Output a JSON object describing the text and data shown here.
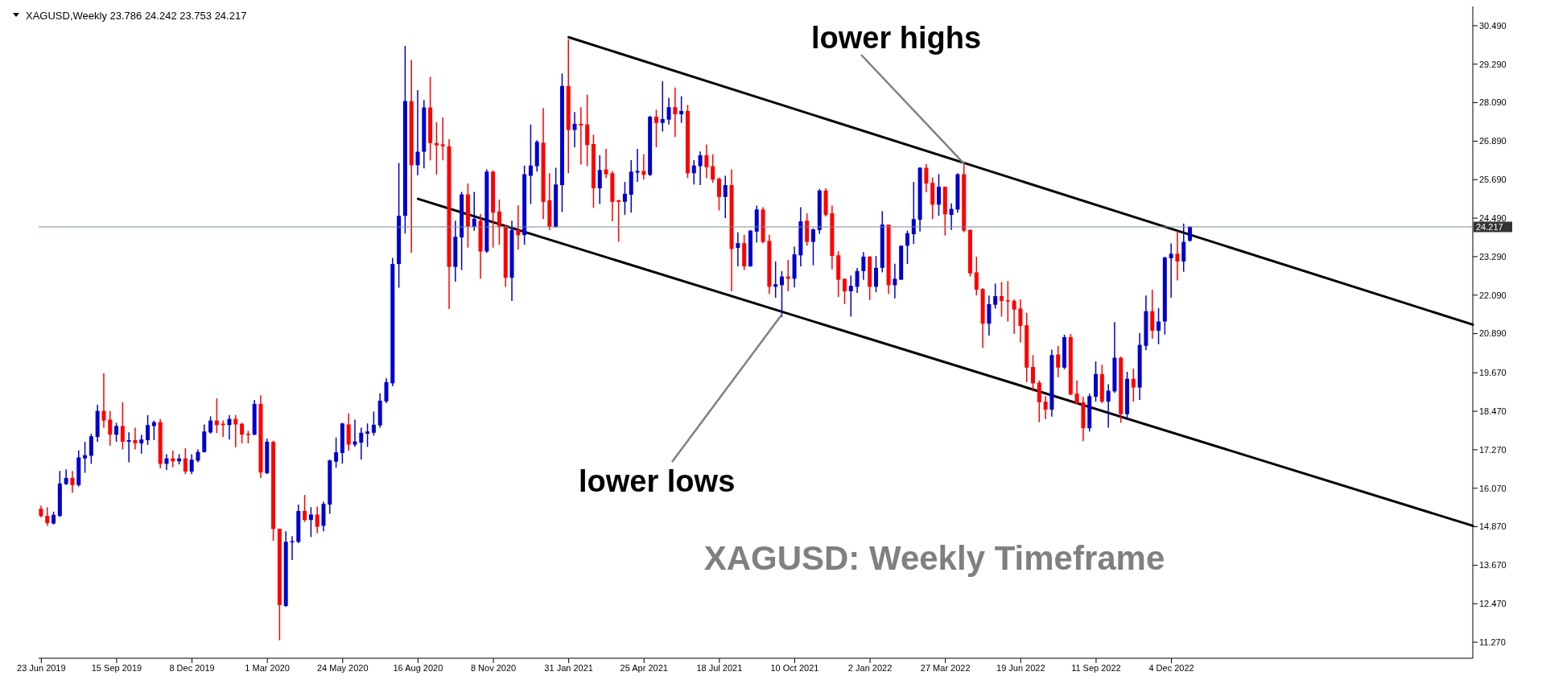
{
  "chart_data": {
    "type": "candlestick",
    "x": [
      "2019-06-23",
      "2019-06-30",
      "2019-07-07",
      "2019-07-14",
      "2019-07-21",
      "2019-07-28",
      "2019-08-04",
      "2019-08-11",
      "2019-08-18",
      "2019-08-25",
      "2019-09-01",
      "2019-09-08",
      "2019-09-15",
      "2019-09-22",
      "2019-09-29",
      "2019-10-06",
      "2019-10-13",
      "2019-10-20",
      "2019-10-27",
      "2019-11-03",
      "2019-11-10",
      "2019-11-17",
      "2019-11-24",
      "2019-12-01",
      "2019-12-08",
      "2019-12-15",
      "2019-12-22",
      "2019-12-29",
      "2020-01-05",
      "2020-01-12",
      "2020-01-19",
      "2020-01-26",
      "2020-02-02",
      "2020-02-09",
      "2020-02-16",
      "2020-02-23",
      "2020-03-01",
      "2020-03-08",
      "2020-03-15",
      "2020-03-22",
      "2020-03-29",
      "2020-04-05",
      "2020-04-12",
      "2020-04-19",
      "2020-04-26",
      "2020-05-03",
      "2020-05-10",
      "2020-05-17",
      "2020-05-24",
      "2020-05-31",
      "2020-06-07",
      "2020-06-14",
      "2020-06-21",
      "2020-06-28",
      "2020-07-05",
      "2020-07-12",
      "2020-07-19",
      "2020-07-26",
      "2020-08-02",
      "2020-08-09",
      "2020-08-16",
      "2020-08-23",
      "2020-08-30",
      "2020-09-06",
      "2020-09-13",
      "2020-09-20",
      "2020-09-27",
      "2020-10-04",
      "2020-10-11",
      "2020-10-18",
      "2020-10-25",
      "2020-11-01",
      "2020-11-08",
      "2020-11-15",
      "2020-11-22",
      "2020-11-29",
      "2020-12-06",
      "2020-12-13",
      "2020-12-20",
      "2020-12-27",
      "2021-01-03",
      "2021-01-10",
      "2021-01-17",
      "2021-01-24",
      "2021-01-31",
      "2021-02-07",
      "2021-02-14",
      "2021-02-21",
      "2021-02-28",
      "2021-03-07",
      "2021-03-14",
      "2021-03-21",
      "2021-03-28",
      "2021-04-04",
      "2021-04-11",
      "2021-04-18",
      "2021-04-25",
      "2021-05-02",
      "2021-05-09",
      "2021-05-16",
      "2021-05-23",
      "2021-05-30",
      "2021-06-06",
      "2021-06-13",
      "2021-06-20",
      "2021-06-27",
      "2021-07-04",
      "2021-07-11",
      "2021-07-18",
      "2021-07-25",
      "2021-08-01",
      "2021-08-08",
      "2021-08-15",
      "2021-08-22",
      "2021-08-29",
      "2021-09-05",
      "2021-09-12",
      "2021-09-19",
      "2021-09-26",
      "2021-10-03",
      "2021-10-10",
      "2021-10-17",
      "2021-10-24",
      "2021-10-31",
      "2021-11-07",
      "2021-11-14",
      "2021-11-21",
      "2021-11-28",
      "2021-12-05",
      "2021-12-12",
      "2021-12-19",
      "2021-12-26",
      "2022-01-02",
      "2022-01-09",
      "2022-01-16",
      "2022-01-23",
      "2022-01-30",
      "2022-02-06",
      "2022-02-13",
      "2022-02-20",
      "2022-02-27",
      "2022-03-06",
      "2022-03-13",
      "2022-03-20",
      "2022-03-27",
      "2022-04-03",
      "2022-04-10",
      "2022-04-17",
      "2022-04-24",
      "2022-05-01",
      "2022-05-08",
      "2022-05-15",
      "2022-05-22",
      "2022-05-29",
      "2022-06-05",
      "2022-06-12",
      "2022-06-19",
      "2022-06-26",
      "2022-07-03",
      "2022-07-10",
      "2022-07-17",
      "2022-07-24",
      "2022-07-31",
      "2022-08-07",
      "2022-08-14",
      "2022-08-21",
      "2022-08-28",
      "2022-09-04",
      "2022-09-11",
      "2022-09-18",
      "2022-09-25",
      "2022-10-02",
      "2022-10-09",
      "2022-10-16",
      "2022-10-23",
      "2022-10-30",
      "2022-11-06",
      "2022-11-13",
      "2022-11-20",
      "2022-11-27",
      "2022-12-04",
      "2022-12-11",
      "2022-12-18",
      "2022-12-25"
    ],
    "ohlc": [
      [
        15.43,
        15.53,
        15.16,
        15.2
      ],
      [
        15.21,
        15.48,
        14.9,
        14.98
      ],
      [
        14.97,
        15.34,
        14.94,
        15.24
      ],
      [
        15.21,
        16.61,
        15.17,
        16.22
      ],
      [
        16.2,
        16.66,
        16.17,
        16.39
      ],
      [
        16.39,
        16.61,
        15.93,
        16.17
      ],
      [
        16.17,
        17.25,
        16.12,
        17.03
      ],
      [
        17.0,
        17.52,
        16.55,
        17.1
      ],
      [
        17.08,
        17.77,
        16.83,
        17.69
      ],
      [
        17.67,
        18.67,
        17.52,
        18.48
      ],
      [
        18.48,
        19.65,
        17.96,
        18.18
      ],
      [
        18.21,
        18.48,
        17.4,
        17.74
      ],
      [
        17.74,
        18.11,
        17.52,
        18.01
      ],
      [
        18.01,
        18.75,
        17.28,
        17.52
      ],
      [
        17.52,
        17.81,
        16.88,
        17.57
      ],
      [
        17.57,
        17.96,
        17.28,
        17.47
      ],
      [
        17.47,
        17.74,
        17.15,
        17.59
      ],
      [
        17.57,
        18.35,
        17.42,
        18.04
      ],
      [
        18.01,
        18.18,
        17.57,
        18.13
      ],
      [
        18.13,
        18.23,
        16.69,
        16.83
      ],
      [
        16.83,
        17.13,
        16.64,
        17.0
      ],
      [
        17.0,
        17.25,
        16.73,
        16.91
      ],
      [
        16.91,
        17.13,
        16.81,
        17.0
      ],
      [
        17.0,
        17.32,
        16.51,
        16.59
      ],
      [
        16.59,
        17.13,
        16.51,
        16.96
      ],
      [
        16.93,
        17.28,
        16.88,
        17.2
      ],
      [
        17.2,
        18.06,
        17.18,
        17.84
      ],
      [
        17.81,
        18.31,
        17.77,
        18.18
      ],
      [
        18.18,
        18.87,
        17.79,
        18.04
      ],
      [
        18.08,
        18.18,
        17.67,
        18.04
      ],
      [
        18.04,
        18.35,
        17.59,
        18.23
      ],
      [
        18.23,
        18.35,
        17.35,
        18.06
      ],
      [
        18.08,
        18.11,
        17.47,
        17.74
      ],
      [
        17.77,
        17.86,
        17.47,
        17.74
      ],
      [
        17.74,
        18.82,
        17.72,
        18.7
      ],
      [
        18.7,
        18.97,
        16.39,
        16.56
      ],
      [
        16.54,
        17.62,
        16.51,
        17.52
      ],
      [
        17.52,
        17.55,
        14.43,
        14.8
      ],
      [
        14.81,
        14.81,
        11.33,
        12.43
      ],
      [
        12.4,
        14.73,
        12.37,
        14.4
      ],
      [
        14.4,
        14.58,
        13.83,
        14.42
      ],
      [
        14.4,
        15.56,
        14.36,
        15.36
      ],
      [
        15.36,
        15.86,
        15.02,
        15.08
      ],
      [
        15.08,
        15.48,
        14.55,
        15.25
      ],
      [
        15.25,
        15.5,
        14.67,
        14.87
      ],
      [
        14.9,
        15.65,
        14.73,
        15.58
      ],
      [
        15.56,
        16.96,
        15.27,
        16.94
      ],
      [
        16.9,
        17.65,
        16.71,
        17.19
      ],
      [
        17.17,
        18.11,
        16.84,
        18.09
      ],
      [
        18.06,
        18.4,
        17.24,
        17.43
      ],
      [
        17.43,
        18.21,
        17.36,
        17.53
      ],
      [
        17.49,
        17.96,
        16.96,
        17.8
      ],
      [
        17.77,
        18.09,
        17.36,
        17.84
      ],
      [
        17.8,
        18.46,
        17.71,
        18.05
      ],
      [
        18.03,
        19.03,
        17.96,
        18.8
      ],
      [
        18.78,
        19.5,
        18.72,
        19.38
      ],
      [
        19.34,
        23.25,
        19.25,
        23.06
      ],
      [
        23.06,
        26.21,
        22.32,
        24.56
      ],
      [
        24.56,
        29.86,
        24.01,
        28.14
      ],
      [
        28.14,
        29.42,
        23.41,
        26.14
      ],
      [
        26.14,
        28.48,
        25.83,
        26.56
      ],
      [
        26.56,
        28.17,
        26.04,
        27.94
      ],
      [
        27.94,
        28.89,
        26.29,
        26.83
      ],
      [
        26.83,
        27.48,
        25.85,
        26.76
      ],
      [
        26.79,
        27.63,
        26.29,
        26.73
      ],
      [
        26.73,
        26.95,
        21.66,
        22.97
      ],
      [
        22.97,
        24.41,
        22.51,
        23.91
      ],
      [
        23.89,
        25.31,
        22.87,
        25.23
      ],
      [
        25.23,
        25.57,
        23.57,
        24.22
      ],
      [
        24.22,
        25.31,
        24.1,
        24.47
      ],
      [
        24.41,
        24.62,
        22.6,
        23.45
      ],
      [
        23.45,
        26.01,
        23.41,
        25.94
      ],
      [
        25.94,
        25.98,
        23.57,
        24.66
      ],
      [
        24.7,
        25.07,
        23.66,
        24.22
      ],
      [
        24.22,
        24.29,
        22.35,
        22.63
      ],
      [
        22.63,
        24.41,
        21.91,
        24.12
      ],
      [
        24.12,
        24.89,
        23.51,
        23.96
      ],
      [
        23.96,
        26.13,
        23.66,
        25.86
      ],
      [
        25.81,
        27.41,
        24.93,
        26.13
      ],
      [
        26.11,
        26.92,
        25.94,
        26.87
      ],
      [
        26.84,
        27.92,
        24.46,
        25.0
      ],
      [
        25.05,
        25.89,
        24.12,
        24.22
      ],
      [
        24.22,
        26.06,
        24.19,
        25.54
      ],
      [
        25.52,
        29.0,
        24.68,
        28.61
      ],
      [
        28.61,
        30.07,
        25.89,
        27.24
      ],
      [
        27.24,
        27.8,
        26.7,
        27.43
      ],
      [
        27.43,
        27.95,
        26.16,
        27.38
      ],
      [
        27.41,
        28.34,
        26.11,
        26.77
      ],
      [
        26.8,
        27.09,
        24.81,
        25.42
      ],
      [
        25.42,
        26.45,
        24.93,
        25.99
      ],
      [
        26.01,
        26.65,
        25.74,
        25.86
      ],
      [
        25.89,
        25.96,
        24.39,
        25.0
      ],
      [
        25.05,
        25.05,
        23.75,
        25.0
      ],
      [
        25.0,
        25.62,
        24.59,
        25.25
      ],
      [
        25.22,
        26.3,
        24.66,
        25.94
      ],
      [
        25.91,
        26.65,
        25.62,
        25.96
      ],
      [
        25.96,
        26.48,
        25.69,
        25.84
      ],
      [
        25.84,
        27.68,
        25.8,
        27.65
      ],
      [
        27.65,
        27.87,
        26.7,
        27.46
      ],
      [
        27.46,
        28.76,
        27.19,
        27.58
      ],
      [
        27.56,
        28.24,
        27.41,
        27.95
      ],
      [
        27.95,
        28.56,
        27.02,
        27.73
      ],
      [
        27.73,
        28.29,
        27.46,
        27.83
      ],
      [
        27.83,
        28.02,
        25.74,
        25.89
      ],
      [
        25.89,
        26.3,
        25.54,
        26.13
      ],
      [
        26.11,
        26.57,
        25.52,
        26.45
      ],
      [
        26.45,
        26.79,
        25.74,
        26.08
      ],
      [
        26.11,
        26.48,
        25.59,
        25.69
      ],
      [
        25.72,
        25.76,
        24.73,
        25.15
      ],
      [
        25.15,
        25.81,
        24.49,
        25.52
      ],
      [
        25.52,
        26.01,
        22.21,
        23.53
      ],
      [
        23.56,
        24.05,
        22.99,
        23.71
      ],
      [
        23.71,
        23.97,
        22.87,
        22.99
      ],
      [
        22.99,
        24.12,
        22.97,
        24.1
      ],
      [
        24.07,
        24.88,
        23.73,
        24.76
      ],
      [
        24.76,
        24.83,
        23.7,
        23.75
      ],
      [
        23.78,
        23.97,
        22.13,
        22.35
      ],
      [
        22.35,
        23.14,
        22.01,
        22.43
      ],
      [
        22.4,
        22.84,
        21.4,
        22.67
      ],
      [
        22.67,
        23.19,
        22.21,
        22.6
      ],
      [
        22.6,
        23.6,
        22.33,
        23.36
      ],
      [
        23.33,
        24.83,
        22.99,
        24.39
      ],
      [
        24.41,
        24.64,
        23.63,
        23.75
      ],
      [
        23.75,
        24.17,
        23.02,
        24.14
      ],
      [
        24.12,
        25.4,
        24.0,
        25.35
      ],
      [
        25.35,
        25.42,
        24.54,
        24.59
      ],
      [
        24.64,
        24.88,
        22.89,
        23.31
      ],
      [
        23.33,
        23.46,
        22.03,
        22.57
      ],
      [
        22.6,
        22.6,
        21.81,
        22.21
      ],
      [
        22.21,
        22.7,
        21.42,
        22.38
      ],
      [
        22.35,
        22.94,
        22.16,
        22.84
      ],
      [
        22.84,
        23.43,
        22.57,
        23.29
      ],
      [
        23.29,
        23.31,
        21.94,
        22.35
      ],
      [
        22.35,
        23.31,
        22.18,
        22.94
      ],
      [
        22.94,
        24.71,
        22.8,
        24.29
      ],
      [
        24.29,
        24.29,
        22.13,
        22.4
      ],
      [
        22.4,
        23.07,
        21.99,
        22.6
      ],
      [
        22.57,
        23.63,
        22.57,
        23.63
      ],
      [
        23.63,
        24.1,
        23.06,
        24.02
      ],
      [
        23.99,
        25.62,
        23.68,
        24.46
      ],
      [
        24.44,
        26.08,
        24.07,
        26.06
      ],
      [
        26.06,
        26.18,
        25.3,
        25.57
      ],
      [
        25.59,
        25.76,
        24.46,
        24.91
      ],
      [
        24.91,
        25.86,
        24.56,
        25.47
      ],
      [
        25.47,
        25.47,
        23.95,
        24.61
      ],
      [
        24.59,
        24.95,
        24.12,
        24.78
      ],
      [
        24.76,
        25.89,
        24.66,
        25.86
      ],
      [
        25.86,
        26.18,
        24.05,
        24.1
      ],
      [
        24.12,
        24.14,
        22.67,
        22.77
      ],
      [
        22.8,
        23.29,
        22.08,
        22.26
      ],
      [
        22.28,
        22.31,
        20.44,
        21.2
      ],
      [
        21.2,
        22.08,
        20.83,
        21.81
      ],
      [
        21.79,
        22.45,
        21.67,
        22.06
      ],
      [
        22.06,
        22.5,
        21.42,
        21.91
      ],
      [
        21.93,
        22.53,
        21.27,
        21.9
      ],
      [
        21.91,
        21.96,
        20.88,
        21.64
      ],
      [
        21.67,
        21.96,
        20.61,
        21.13
      ],
      [
        21.15,
        21.54,
        19.38,
        19.83
      ],
      [
        19.85,
        20.22,
        19.09,
        19.34
      ],
      [
        19.36,
        19.43,
        18.13,
        18.75
      ],
      [
        18.77,
        18.94,
        18.23,
        18.52
      ],
      [
        18.52,
        20.39,
        18.3,
        20.22
      ],
      [
        20.24,
        20.51,
        19.53,
        19.83
      ],
      [
        19.83,
        20.86,
        19.78,
        20.78
      ],
      [
        20.78,
        20.88,
        18.97,
        18.99
      ],
      [
        19.02,
        19.43,
        18.7,
        18.72
      ],
      [
        18.75,
        18.92,
        17.54,
        17.94
      ],
      [
        17.94,
        19.02,
        17.84,
        18.94
      ],
      [
        18.92,
        20.02,
        18.77,
        19.63
      ],
      [
        19.63,
        19.92,
        18.72,
        18.77
      ],
      [
        18.77,
        19.31,
        17.96,
        19.11
      ],
      [
        19.09,
        21.25,
        19.04,
        20.14
      ],
      [
        20.14,
        20.17,
        18.11,
        18.38
      ],
      [
        18.38,
        19.7,
        18.23,
        19.48
      ],
      [
        19.48,
        19.8,
        18.77,
        19.21
      ],
      [
        19.21,
        20.91,
        18.82,
        20.54
      ],
      [
        20.51,
        22.08,
        20.37,
        21.59
      ],
      [
        21.59,
        22.26,
        20.73,
        20.98
      ],
      [
        20.98,
        21.69,
        20.56,
        21.27
      ],
      [
        21.27,
        23.29,
        20.86,
        23.26
      ],
      [
        23.24,
        23.7,
        22.01,
        23.38
      ],
      [
        23.38,
        24.1,
        22.55,
        23.14
      ],
      [
        23.14,
        24.32,
        22.82,
        23.75
      ],
      [
        23.786,
        24.242,
        23.753,
        24.217
      ]
    ],
    "colors": [
      "#ff0000",
      "#ff0000",
      "#0000cd",
      "#0000cd",
      "#0000cd",
      "#ff0000",
      "#0000cd",
      "#0000cd",
      "#0000cd",
      "#0000cd",
      "#ff0000",
      "#ff0000",
      "#0000cd",
      "#ff0000",
      "#0000cd",
      "#ff0000",
      "#0000cd",
      "#0000cd",
      "#0000cd",
      "#ff0000",
      "#0000cd",
      "#ff0000",
      "#0000cd",
      "#ff0000",
      "#0000cd",
      "#0000cd",
      "#0000cd",
      "#0000cd",
      "#ff0000",
      "#ff0000",
      "#0000cd",
      "#ff0000",
      "#ff0000",
      "#ff0000",
      "#0000cd",
      "#ff0000",
      "#0000cd",
      "#ff0000",
      "#ff0000",
      "#0000cd",
      "#0000cd",
      "#0000cd",
      "#ff0000",
      "#0000cd",
      "#ff0000",
      "#0000cd",
      "#0000cd",
      "#0000cd",
      "#0000cd",
      "#ff0000",
      "#0000cd",
      "#0000cd",
      "#0000cd",
      "#0000cd",
      "#0000cd",
      "#0000cd",
      "#0000cd",
      "#0000cd",
      "#0000cd",
      "#ff0000",
      "#0000cd",
      "#0000cd",
      "#ff0000",
      "#ff0000",
      "#ff0000",
      "#ff0000",
      "#0000cd",
      "#0000cd",
      "#ff0000",
      "#0000cd",
      "#ff0000",
      "#0000cd",
      "#ff0000",
      "#ff0000",
      "#ff0000",
      "#0000cd",
      "#ff0000",
      "#0000cd",
      "#0000cd",
      "#0000cd",
      "#ff0000",
      "#ff0000",
      "#0000cd",
      "#0000cd",
      "#ff0000",
      "#0000cd",
      "#ff0000",
      "#ff0000",
      "#ff0000",
      "#0000cd",
      "#ff0000",
      "#ff0000",
      "#ff0000",
      "#0000cd",
      "#0000cd",
      "#0000cd",
      "#ff0000",
      "#0000cd",
      "#ff0000",
      "#0000cd",
      "#0000cd",
      "#ff0000",
      "#0000cd",
      "#ff0000",
      "#0000cd",
      "#0000cd",
      "#ff0000",
      "#ff0000",
      "#ff0000",
      "#0000cd",
      "#ff0000",
      "#0000cd",
      "#ff0000",
      "#0000cd",
      "#0000cd",
      "#ff0000",
      "#ff0000",
      "#0000cd",
      "#0000cd",
      "#ff0000",
      "#0000cd",
      "#0000cd",
      "#ff0000",
      "#0000cd",
      "#0000cd",
      "#ff0000",
      "#ff0000",
      "#ff0000",
      "#ff0000",
      "#0000cd",
      "#0000cd",
      "#0000cd",
      "#ff0000",
      "#0000cd",
      "#0000cd",
      "#ff0000",
      "#0000cd",
      "#0000cd",
      "#0000cd",
      "#0000cd",
      "#0000cd",
      "#ff0000",
      "#ff0000",
      "#0000cd",
      "#ff0000",
      "#0000cd",
      "#0000cd",
      "#ff0000",
      "#ff0000",
      "#ff0000",
      "#ff0000",
      "#0000cd",
      "#0000cd",
      "#ff0000",
      "#ff0000",
      "#ff0000",
      "#ff0000",
      "#ff0000",
      "#ff0000",
      "#ff0000",
      "#ff0000",
      "#0000cd",
      "#ff0000",
      "#0000cd",
      "#ff0000",
      "#ff0000",
      "#ff0000",
      "#0000cd",
      "#0000cd",
      "#ff0000",
      "#0000cd",
      "#0000cd",
      "#ff0000",
      "#0000cd",
      "#ff0000",
      "#0000cd",
      "#0000cd",
      "#ff0000",
      "#0000cd",
      "#0000cd",
      "#0000cd",
      "#ff0000",
      "#0000cd",
      "#0000cd"
    ],
    "series": [
      {
        "type": "line",
        "color": "#000000",
        "x": [
          "2021-01-31",
          "2023-11-05"
        ],
        "values": [
          30.13,
          21.17
        ]
      },
      {
        "type": "line",
        "color": "#000000",
        "x": [
          "2020-08-16",
          "2023-11-05"
        ],
        "values": [
          25.09,
          14.9
        ]
      }
    ],
    "xlim": [
      "2019-06-20",
      "2023-11-05"
    ],
    "xticks": [
      {
        "value": "2019-06-23",
        "label": "23 Jun 2019"
      },
      {
        "value": "2019-09-15",
        "label": "15 Sep 2019"
      },
      {
        "value": "2019-12-08",
        "label": "8 Dec 2019"
      },
      {
        "value": "2020-03-01",
        "label": "1 Mar 2020"
      },
      {
        "value": "2020-05-24",
        "label": "24 May 2020"
      },
      {
        "value": "2020-08-16",
        "label": "16 Aug 2020"
      },
      {
        "value": "2020-11-08",
        "label": "8 Nov 2020"
      },
      {
        "value": "2021-01-31",
        "label": "31 Jan 2021"
      },
      {
        "value": "2021-04-25",
        "label": "25 Apr 2021"
      },
      {
        "value": "2021-07-18",
        "label": "18 Jul 2021"
      },
      {
        "value": "2021-10-10",
        "label": "10 Oct 2021"
      },
      {
        "value": "2022-01-02",
        "label": "2 Jan 2022"
      },
      {
        "value": "2022-03-27",
        "label": "27 Mar 2022"
      },
      {
        "value": "2022-06-19",
        "label": "19 Jun 2022"
      },
      {
        "value": "2022-09-11",
        "label": "11 Sep 2022"
      },
      {
        "value": "2022-12-04",
        "label": "4 Dec 2022"
      }
    ],
    "ylim": [
      10.77,
      31.09
    ],
    "yticks": [
      {
        "value": 11.27,
        "label": "11.270"
      },
      {
        "value": 12.47,
        "label": "12.470"
      },
      {
        "value": 13.67,
        "label": "13.670"
      },
      {
        "value": 14.87,
        "label": "14.870"
      },
      {
        "value": 16.07,
        "label": "16.070"
      },
      {
        "value": 17.27,
        "label": "17.270"
      },
      {
        "value": 18.47,
        "label": "18.470"
      },
      {
        "value": 19.67,
        "label": "19.670"
      },
      {
        "value": 20.89,
        "label": "20.890"
      },
      {
        "value": 22.09,
        "label": "22.090"
      },
      {
        "value": 23.29,
        "label": "23.290"
      },
      {
        "value": 24.49,
        "label": "24.490"
      },
      {
        "value": 25.69,
        "label": "25.690"
      },
      {
        "value": 26.89,
        "label": "26.890"
      },
      {
        "value": 28.09,
        "label": "28.090"
      },
      {
        "value": 29.29,
        "label": "29.290"
      },
      {
        "value": 30.49,
        "label": "30.490"
      }
    ],
    "ref_lines": [
      {
        "axis": "y",
        "value": 24.217,
        "label": "24.217",
        "color": "#778899"
      }
    ],
    "annotations": [
      "XAGUSD,Weekly  23.786 24.242 23.753 24.217",
      {
        "text": "lower highs",
        "x": "2022-04-17",
        "y": 26.18
      },
      {
        "text": "lower lows",
        "x": "2021-09-26",
        "y": 21.5
      },
      "XAGUSD: Weekly Timeframe"
    ]
  }
}
